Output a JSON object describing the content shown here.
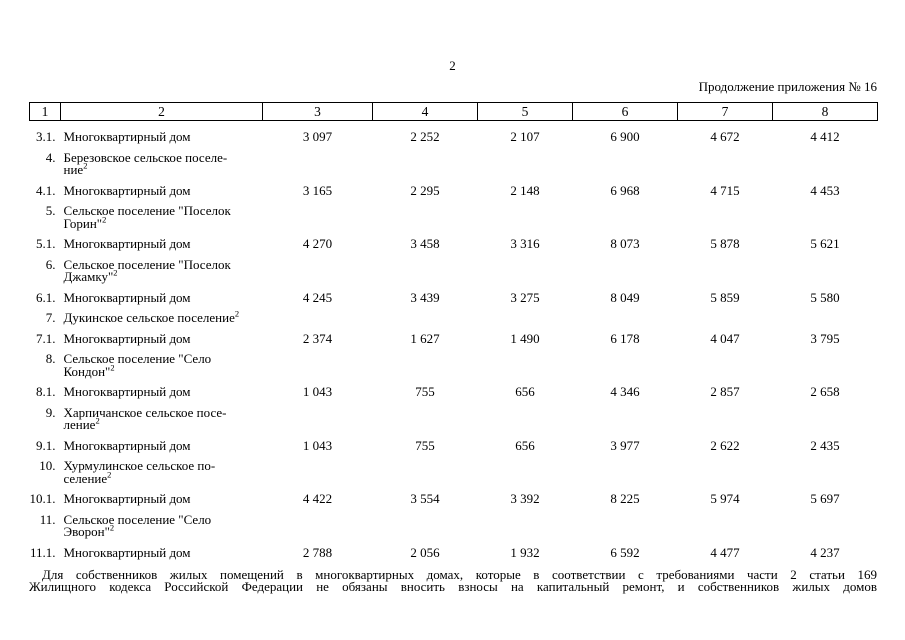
{
  "page": {
    "number": "2",
    "continuation": "Продолжение приложения № 16"
  },
  "table": {
    "header": [
      "1",
      "2",
      "3",
      "4",
      "5",
      "6",
      "7",
      "8"
    ],
    "rows": [
      {
        "num": "3.1.",
        "name": "Многоквартирный дом",
        "sup": "",
        "values": [
          "3 097",
          "2 252",
          "2 107",
          "6 900",
          "4 672",
          "4 412"
        ]
      },
      {
        "num": "4.",
        "name": "Березовское сельское поселе-\nние",
        "sup": "2",
        "values": [
          "",
          "",
          "",
          "",
          "",
          ""
        ]
      },
      {
        "num": "4.1.",
        "name": "Многоквартирный дом",
        "sup": "",
        "values": [
          "3 165",
          "2 295",
          "2 148",
          "6 968",
          "4 715",
          "4 453"
        ]
      },
      {
        "num": "5.",
        "name": "Сельское поселение \"Поселок\nГорин\"",
        "sup": "2",
        "values": [
          "",
          "",
          "",
          "",
          "",
          ""
        ]
      },
      {
        "num": "5.1.",
        "name": "Многоквартирный дом",
        "sup": "",
        "values": [
          "4 270",
          "3 458",
          "3 316",
          "8 073",
          "5 878",
          "5 621"
        ]
      },
      {
        "num": "6.",
        "name": "Сельское поселение \"Поселок\nДжамку\"",
        "sup": "2",
        "values": [
          "",
          "",
          "",
          "",
          "",
          ""
        ]
      },
      {
        "num": "6.1.",
        "name": "Многоквартирный дом",
        "sup": "",
        "values": [
          "4 245",
          "3 439",
          "3 275",
          "8 049",
          "5 859",
          "5 580"
        ]
      },
      {
        "num": "7.",
        "name": "Дукинское сельское поселение",
        "sup": "2",
        "values": [
          "",
          "",
          "",
          "",
          "",
          ""
        ]
      },
      {
        "num": "7.1.",
        "name": "Многоквартирный дом",
        "sup": "",
        "values": [
          "2 374",
          "1 627",
          "1 490",
          "6 178",
          "4 047",
          "3 795"
        ]
      },
      {
        "num": "8.",
        "name": "Сельское поселение \"Село\nКондон\"",
        "sup": "2",
        "values": [
          "",
          "",
          "",
          "",
          "",
          ""
        ]
      },
      {
        "num": "8.1.",
        "name": "Многоквартирный дом",
        "sup": "",
        "values": [
          "1 043",
          "755",
          "656",
          "4 346",
          "2 857",
          "2 658"
        ]
      },
      {
        "num": "9.",
        "name": "Харпичанское сельское посе-\nление",
        "sup": "2",
        "values": [
          "",
          "",
          "",
          "",
          "",
          ""
        ]
      },
      {
        "num": "9.1.",
        "name": "Многоквартирный дом",
        "sup": "",
        "values": [
          "1 043",
          "755",
          "656",
          "3 977",
          "2 622",
          "2 435"
        ]
      },
      {
        "num": "10.",
        "name": "Хурмулинское сельское по-\nселение",
        "sup": "2",
        "values": [
          "",
          "",
          "",
          "",
          "",
          ""
        ]
      },
      {
        "num": "10.1.",
        "name": "Многоквартирный дом",
        "sup": "",
        "values": [
          "4 422",
          "3 554",
          "3 392",
          "8 225",
          "5 974",
          "5 697"
        ]
      },
      {
        "num": "11.",
        "name": "Сельское поселение \"Село\nЭворон\"",
        "sup": "2",
        "values": [
          "",
          "",
          "",
          "",
          "",
          ""
        ]
      },
      {
        "num": "11.1.",
        "name": "Многоквартирный дом",
        "sup": "",
        "values": [
          "2 788",
          "2 056",
          "1 932",
          "6 592",
          "4 477",
          "4 237"
        ]
      }
    ]
  },
  "footnote": {
    "line1": "Для собственников жилых помещений в многоквартирных домах, которые в соответствии с требованиями части 2 статьи 169",
    "line2": "Жилищного кодекса Российской Федерации не обязаны вносить взносы на капитальный ремонт, и собственников жилых домов"
  }
}
